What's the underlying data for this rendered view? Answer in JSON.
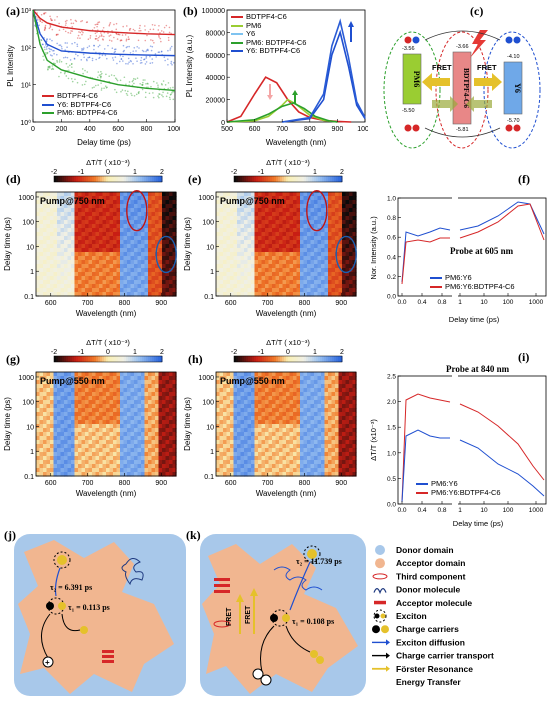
{
  "panel_labels": {
    "a": "(a)",
    "b": "(b)",
    "c": "(c)",
    "d": "(d)",
    "e": "(e)",
    "f": "(f)",
    "g": "(g)",
    "h": "(h)",
    "i": "(i)",
    "j": "(j)",
    "k": "(k)"
  },
  "colors": {
    "red": "#d62728",
    "blue": "#1f4fd0",
    "green": "#2ca02c",
    "lightgreen": "#9acd32"
  },
  "chart_data": [
    {
      "id": "a",
      "type": "line",
      "xlabel": "Delay time (ps)",
      "ylabel": "PL Intensity",
      "xlim": [
        0,
        1000
      ],
      "ylim": [
        1,
        1000
      ],
      "yscale": "log",
      "xticks": [
        "0",
        "200",
        "400",
        "600",
        "800",
        "1000"
      ],
      "yticks": [
        "10⁰",
        "10¹",
        "10²",
        "10³"
      ],
      "series": [
        {
          "name": "BDTPF4-C6",
          "color": "#d62728",
          "x": [
            0,
            50,
            100,
            200,
            400,
            600,
            800,
            1000
          ],
          "y": [
            1000,
            600,
            450,
            350,
            280,
            250,
            230,
            220
          ]
        },
        {
          "name": "Y6: BDTPF4-C6",
          "color": "#1f4fd0",
          "x": [
            0,
            50,
            100,
            200,
            400,
            600,
            800,
            1000
          ],
          "y": [
            1000,
            230,
            120,
            80,
            70,
            65,
            62,
            60
          ]
        },
        {
          "name": "PM6: BDTPF4-C6",
          "color": "#2ca02c",
          "x": [
            0,
            50,
            100,
            200,
            400,
            600,
            800,
            1000
          ],
          "y": [
            1000,
            120,
            45,
            25,
            15,
            10,
            8,
            7
          ]
        }
      ]
    },
    {
      "id": "b",
      "type": "line",
      "xlabel": "Wavelength (nm)",
      "ylabel": "PL Intensity (a.u.)",
      "xlim": [
        500,
        1000
      ],
      "ylim": [
        0,
        100000
      ],
      "xticks": [
        "500",
        "600",
        "700",
        "800",
        "900",
        "1000"
      ],
      "yticks": [
        "0",
        "20000",
        "40000",
        "60000",
        "80000",
        "100000"
      ],
      "series": [
        {
          "name": "BDTPF4-C6",
          "color": "#d62728",
          "x": [
            500,
            550,
            600,
            640,
            680,
            720,
            760,
            800,
            850,
            900,
            950
          ],
          "y": [
            0,
            5000,
            25000,
            40000,
            35000,
            20000,
            9000,
            4000,
            1500,
            500,
            0
          ]
        },
        {
          "name": "PM6",
          "color": "#9acd32",
          "x": [
            500,
            600,
            650,
            700,
            720,
            750,
            800,
            850,
            900
          ],
          "y": [
            0,
            1000,
            5000,
            15000,
            20000,
            16000,
            6000,
            1500,
            0
          ]
        },
        {
          "name": "Y6",
          "color": "#1f4fd0",
          "x": [
            700,
            800,
            850,
            880,
            910,
            940,
            970,
            1000
          ],
          "y": [
            0,
            3000,
            20000,
            60000,
            80000,
            50000,
            15000,
            3000
          ]
        },
        {
          "name": "PM6: BDTPF4-C6",
          "color": "#2ca02c",
          "x": [
            500,
            600,
            650,
            700,
            740,
            780,
            820,
            870,
            900
          ],
          "y": [
            0,
            2000,
            7000,
            14000,
            17000,
            12000,
            5000,
            1000,
            0
          ]
        },
        {
          "name": "Y6: BDTPF4-C6",
          "color": "#2a5cd6",
          "x": [
            700,
            800,
            850,
            880,
            910,
            940,
            970,
            1000
          ],
          "y": [
            0,
            4000,
            25000,
            68000,
            90000,
            58000,
            18000,
            4000
          ]
        }
      ]
    },
    {
      "id": "f",
      "type": "line",
      "xlabel": "Delay time (ps)",
      "ylabel": "Nor. Intensity (a.u.)",
      "annotation": "Probe at 605 nm",
      "xticks": [
        "0.0",
        "0.4",
        "0.8",
        "1",
        "10",
        "100",
        "1000"
      ],
      "yticks": [
        "0.0",
        "0.2",
        "0.4",
        "0.6",
        "0.8",
        "1.0"
      ],
      "series": [
        {
          "name": "PM6:Y6",
          "color": "#1f4fd0"
        },
        {
          "name": "PM6:Y6:BDTPF4-C6",
          "color": "#d62728"
        }
      ]
    },
    {
      "id": "i",
      "type": "line",
      "xlabel": "Delay time (ps)",
      "ylabel": "ΔT/T (x10⁻³)",
      "annotation": "Probe at 840 nm",
      "xticks": [
        "0.0",
        "0.4",
        "0.8",
        "1",
        "10",
        "100",
        "1000"
      ],
      "yticks": [
        "0.0",
        "0.5",
        "1.0",
        "1.5",
        "2.0",
        "2.5"
      ],
      "series": [
        {
          "name": "PM6:Y6",
          "color": "#1f4fd0"
        },
        {
          "name": "PM6:Y6:BDTPF4-C6",
          "color": "#d62728"
        }
      ]
    },
    {
      "id": "d",
      "type": "heatmap",
      "xlabel": "Wavelength (nm)",
      "ylabel": "Delay time (ps)",
      "colorbar_title": "ΔT/T  ( x10⁻³)",
      "colorbar_ticks": [
        "-2",
        "-1",
        "0",
        "1",
        "2"
      ],
      "pump": "Pump@750 nm",
      "xticks": [
        "600",
        "700",
        "800",
        "900"
      ],
      "yticks": [
        "0.1",
        "1",
        "10",
        "100",
        "1000"
      ]
    },
    {
      "id": "e",
      "type": "heatmap",
      "xlabel": "Wavelength (nm)",
      "ylabel": "Delay time (ps)",
      "colorbar_title": "ΔT/T  ( x10⁻³)",
      "colorbar_ticks": [
        "-2",
        "-1",
        "0",
        "1",
        "2"
      ],
      "pump": "Pump@750 nm",
      "xticks": [
        "600",
        "700",
        "800",
        "900"
      ],
      "yticks": [
        "0.1",
        "1",
        "10",
        "100",
        "1000"
      ]
    },
    {
      "id": "g",
      "type": "heatmap",
      "xlabel": "Wavelength (nm)",
      "ylabel": "Delay time (ps)",
      "colorbar_title": "ΔT/T  ( x10⁻³)",
      "colorbar_ticks": [
        "-2",
        "-1",
        "0",
        "1",
        "2"
      ],
      "pump": "Pump@550 nm",
      "xticks": [
        "600",
        "700",
        "800",
        "900"
      ],
      "yticks": [
        "0.1",
        "1",
        "10",
        "100",
        "1000"
      ]
    },
    {
      "id": "h",
      "type": "heatmap",
      "xlabel": "Wavelength (nm)",
      "ylabel": "Delay time (ps)",
      "colorbar_title": "ΔT/T  ( x10⁻³)",
      "colorbar_ticks": [
        "-2",
        "-1",
        "0",
        "1",
        "2"
      ],
      "pump": "Pump@550 nm",
      "xticks": [
        "600",
        "700",
        "800",
        "900"
      ],
      "yticks": [
        "0.1",
        "1",
        "10",
        "100",
        "1000"
      ]
    }
  ],
  "energy_diagram": {
    "pm6": "PM6",
    "bdt": "BDTPF4-C6",
    "y6": "Y6",
    "fret": "FRET",
    "levels": {
      "pm6_lumo": "-3.56",
      "pm6_homo": "-5.50",
      "bdt_lumo": "-3.66",
      "bdt_homo": "-5.81",
      "y6_lumo": "-4.10",
      "y6_homo": "-5.70"
    }
  },
  "schematic_j": {
    "tau2": "τ₂ = 6.391 ps",
    "tau1": "τ₁ = 0.113 ps"
  },
  "schematic_k": {
    "tau2": "τ₂ = 11.739 ps",
    "tau1": "τ₁ = 0.108 ps",
    "fret1": "FRET",
    "fret2": "FRET"
  },
  "legend_k": [
    {
      "label": "Donor domain",
      "icon": "donor-domain-icon"
    },
    {
      "label": "Acceptor domain",
      "icon": "acceptor-domain-icon"
    },
    {
      "label": "Third component",
      "icon": "third-component-icon"
    },
    {
      "label": "Donor molecule",
      "icon": "donor-molecule-icon"
    },
    {
      "label": "Acceptor molecule",
      "icon": "acceptor-molecule-icon"
    },
    {
      "label": "Exciton",
      "icon": "exciton-icon"
    },
    {
      "label": "Charge carriers",
      "icon": "charge-carriers-icon"
    },
    {
      "label": "Exciton diffusion",
      "icon": "exciton-diffusion-icon"
    },
    {
      "label": "Charge carrier transport",
      "icon": "charge-transport-icon"
    },
    {
      "label": "Förster Resonance",
      "icon": "fret-arrow-icon"
    },
    {
      "label": "Energy Transfer",
      "icon": ""
    }
  ]
}
